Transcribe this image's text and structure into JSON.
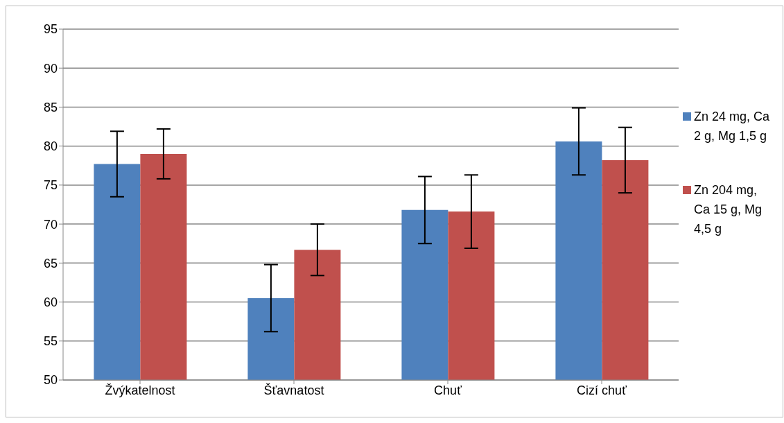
{
  "chart_data": {
    "type": "bar",
    "categories": [
      "Žvýkatelnost",
      "Šťavnatost",
      "Chuť",
      "Cizí chuť"
    ],
    "series": [
      {
        "name": "Zn 24 mg, Ca 2 g, Mg 1,5 g",
        "color": "#4f81bd",
        "values": [
          77.7,
          60.5,
          71.8,
          80.6
        ],
        "errors": [
          4.2,
          4.3,
          4.3,
          4.3
        ]
      },
      {
        "name": "Zn 204 mg, Ca 15 g, Mg 4,5 g",
        "color": "#c0504d",
        "values": [
          79.0,
          66.7,
          71.6,
          78.2
        ],
        "errors": [
          3.2,
          3.3,
          4.7,
          4.2
        ]
      }
    ],
    "ylim": [
      50,
      95
    ],
    "yticks": [
      50,
      55,
      60,
      65,
      70,
      75,
      80,
      85,
      90,
      95
    ],
    "grid": "y",
    "legend": "right"
  }
}
